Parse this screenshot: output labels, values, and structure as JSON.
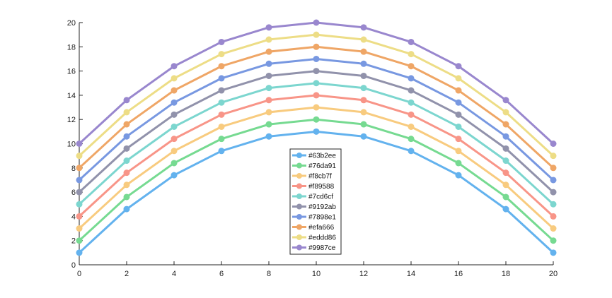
{
  "chart_data": {
    "type": "line",
    "title": "",
    "xlabel": "",
    "ylabel": "",
    "x": [
      0,
      2,
      4,
      6,
      8,
      10,
      12,
      14,
      16,
      18,
      20
    ],
    "xlim": [
      0,
      20
    ],
    "ylim": [
      0,
      20
    ],
    "xticks": [
      0,
      2,
      4,
      6,
      8,
      10,
      12,
      14,
      16,
      18,
      20
    ],
    "yticks": [
      0,
      2,
      4,
      6,
      8,
      10,
      12,
      14,
      16,
      18,
      20
    ],
    "grid": false,
    "legend_position": "center-bottom",
    "series": [
      {
        "name": "#63b2ee",
        "color": "#63b2ee",
        "values": [
          1,
          4.6,
          7.4,
          9.4,
          10.6,
          11,
          10.6,
          9.4,
          7.4,
          4.6,
          1
        ]
      },
      {
        "name": "#76da91",
        "color": "#76da91",
        "values": [
          2,
          5.6,
          8.4,
          10.4,
          11.6,
          12,
          11.6,
          10.4,
          8.4,
          5.6,
          2
        ]
      },
      {
        "name": "#f8cb7f",
        "color": "#f8cb7f",
        "values": [
          3,
          6.6,
          9.4,
          11.4,
          12.6,
          13,
          12.6,
          11.4,
          9.4,
          6.6,
          3
        ]
      },
      {
        "name": "#f89588",
        "color": "#f89588",
        "values": [
          4,
          7.6,
          10.4,
          12.4,
          13.6,
          14,
          13.6,
          12.4,
          10.4,
          7.6,
          4
        ]
      },
      {
        "name": "#7cd6cf",
        "color": "#7cd6cf",
        "values": [
          5,
          8.6,
          11.4,
          13.4,
          14.6,
          15,
          14.6,
          13.4,
          11.4,
          8.6,
          5
        ]
      },
      {
        "name": "#9192ab",
        "color": "#9192ab",
        "values": [
          6,
          9.6,
          12.4,
          14.4,
          15.6,
          16,
          15.6,
          14.4,
          12.4,
          9.6,
          6
        ]
      },
      {
        "name": "#7898e1",
        "color": "#7898e1",
        "values": [
          7,
          10.6,
          13.4,
          15.4,
          16.6,
          17,
          16.6,
          15.4,
          13.4,
          10.6,
          7
        ]
      },
      {
        "name": "#efa666",
        "color": "#efa666",
        "values": [
          8,
          11.6,
          14.4,
          16.4,
          17.6,
          18,
          17.6,
          16.4,
          14.4,
          11.6,
          8
        ]
      },
      {
        "name": "#eddd86",
        "color": "#eddd86",
        "values": [
          9,
          12.6,
          15.4,
          17.4,
          18.6,
          19,
          18.6,
          17.4,
          15.4,
          12.6,
          9
        ]
      },
      {
        "name": "#9987ce",
        "color": "#9987ce",
        "values": [
          10,
          13.6,
          16.4,
          18.4,
          19.6,
          20,
          19.6,
          18.4,
          16.4,
          13.6,
          10
        ]
      }
    ]
  }
}
